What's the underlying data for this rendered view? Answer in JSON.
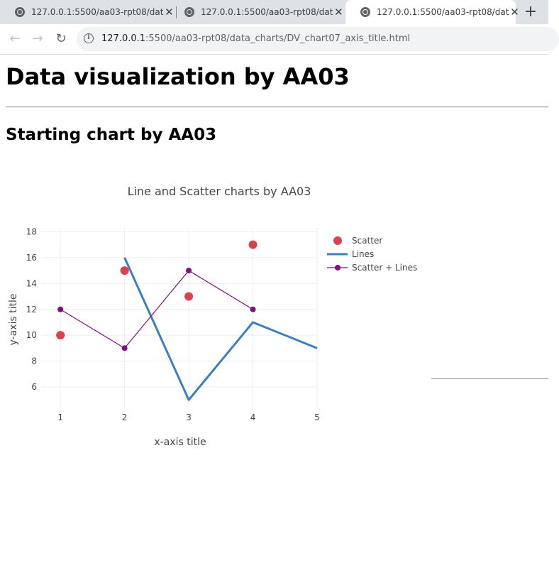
{
  "browser": {
    "tabs": [
      {
        "title": "127.0.0.1:5500/aa03-rpt08/dat",
        "active": false
      },
      {
        "title": "127.0.0.1:5500/aa03-rpt08/dat",
        "active": false
      },
      {
        "title": "127.0.0.1:5500/aa03-rpt08/dat",
        "active": true
      }
    ],
    "new_tab_label": "+",
    "back_label": "←",
    "forward_label": "→",
    "reload_label": "↻",
    "url_host": "127.0.0.1",
    "url_rest": ":5500/aa03-rpt08/data_charts/DV_chart07_axis_title.html"
  },
  "page": {
    "heading": "Data visualization by AA03",
    "subheading": "Starting chart by AA03"
  },
  "chart_data": {
    "type": "line",
    "title": "Line and Scatter charts by AA03",
    "xlabel": "x-axis title",
    "ylabel": "y-axis title",
    "xlim": [
      0.7,
      5
    ],
    "ylim": [
      4.3,
      18.3
    ],
    "x_ticks": [
      1,
      2,
      3,
      4,
      5
    ],
    "y_ticks": [
      6,
      8,
      10,
      12,
      14,
      16,
      18
    ],
    "grid": true,
    "legend": "top-right",
    "series": [
      {
        "name": "Scatter",
        "mode": "markers",
        "color": "#d9434f",
        "x": [
          1,
          2,
          3,
          4
        ],
        "y": [
          10,
          15,
          13,
          17
        ]
      },
      {
        "name": "Lines",
        "mode": "lines",
        "color": "#3a7fc0",
        "x": [
          2,
          3,
          4,
          5
        ],
        "y": [
          16,
          5,
          11,
          9
        ]
      },
      {
        "name": "Scatter + Lines",
        "mode": "lines+markers",
        "color": "#7d0f80",
        "x": [
          1,
          2,
          3,
          4
        ],
        "y": [
          12,
          9,
          15,
          12
        ]
      }
    ]
  }
}
